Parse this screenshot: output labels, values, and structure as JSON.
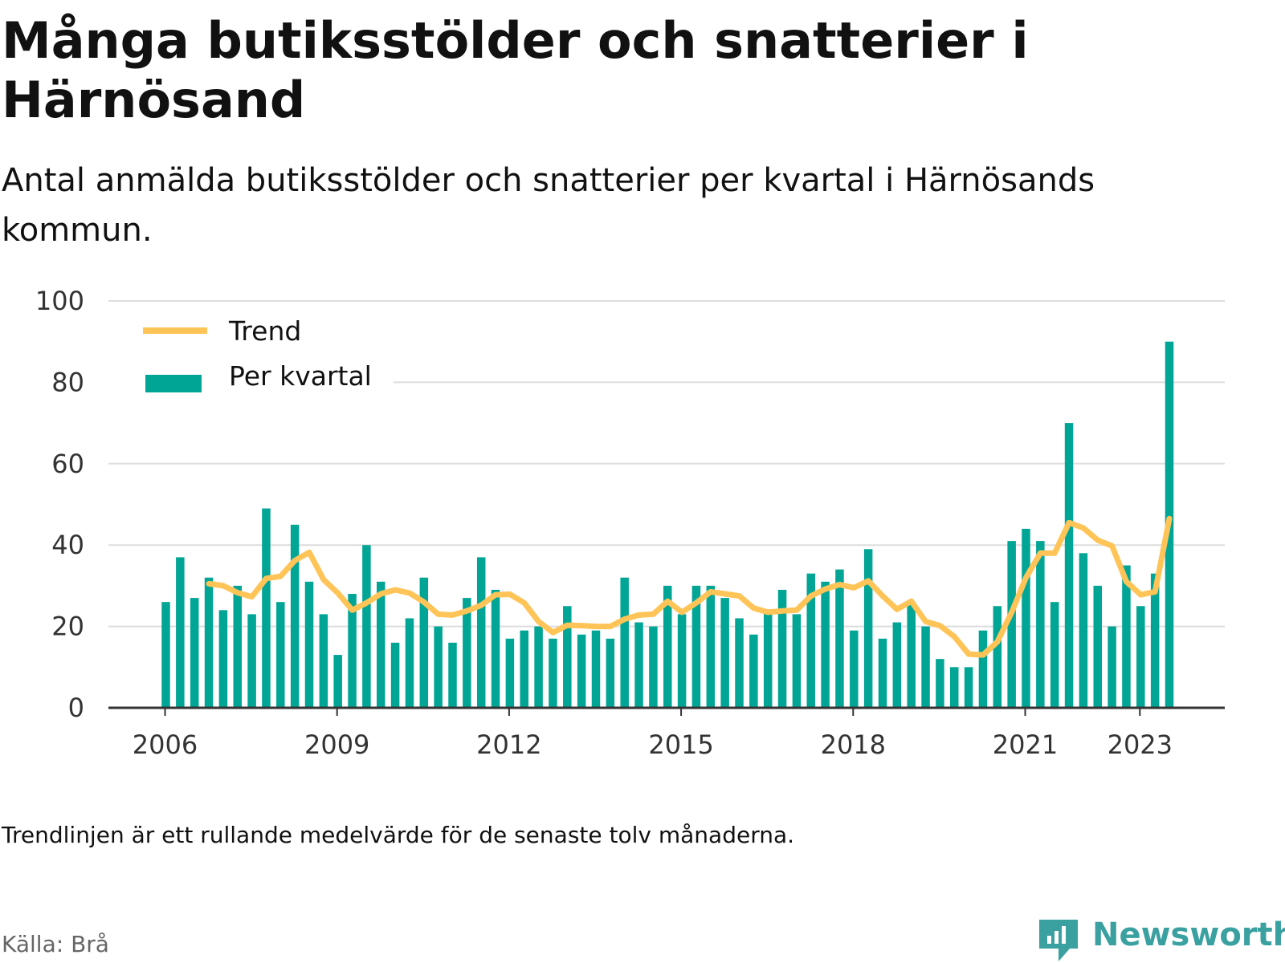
{
  "header": {
    "title": "Många butiksstölder och snatterier i Härnösand",
    "subtitle": "Antal anmälda butiksstölder och snatterier per kvartal i Härnösands kommun."
  },
  "footer": {
    "note": "Trendlinjen är ett rullande medelvärde för de senaste tolv månaderna.",
    "source": "Källa: Brå",
    "brand": "Newsworthy"
  },
  "colors": {
    "bar": "#00a595",
    "trend": "#ffc457",
    "grid": "#dddddd",
    "axis": "#333333"
  },
  "chart_data": {
    "type": "bar",
    "x_start": "2006 Q1",
    "x_ticks": [
      "2006",
      "2009",
      "2012",
      "2015",
      "2018",
      "2021",
      "2023"
    ],
    "y_ticks": [
      "0",
      "20",
      "40",
      "60",
      "80",
      "100"
    ],
    "ylim": [
      0,
      100
    ],
    "grid": true,
    "legend_position": "top-left",
    "series": [
      {
        "name": "Per kvartal",
        "type": "bar",
        "values": [
          26,
          37,
          27,
          32,
          24,
          30,
          23,
          49,
          26,
          45,
          31,
          23,
          13,
          28,
          40,
          31,
          16,
          22,
          32,
          20,
          16,
          27,
          37,
          29,
          17,
          19,
          20,
          17,
          25,
          18,
          19,
          17,
          32,
          21,
          20,
          30,
          23,
          30,
          30,
          27,
          22,
          18,
          24,
          29,
          23,
          33,
          31,
          34,
          19,
          39,
          17,
          21,
          26,
          20,
          12,
          10,
          10,
          19,
          25,
          41,
          44,
          41,
          26,
          70,
          38,
          30,
          20,
          35,
          25,
          33,
          90
        ]
      },
      {
        "name": "Trend",
        "type": "line",
        "start_index": 3,
        "values": [
          30.5,
          30,
          28.3,
          27.3,
          31.8,
          32.3,
          36.2,
          38.2,
          31.5,
          28.2,
          24,
          25.8,
          28,
          29,
          28.2,
          26,
          23,
          22.8,
          23.8,
          25.2,
          27.8,
          27.9,
          25.8,
          21.2,
          18.5,
          20.3,
          20.2,
          20,
          20,
          21.8,
          22.8,
          23,
          26.2,
          23.5,
          25.8,
          28.5,
          28,
          27.5,
          24.5,
          23.5,
          23.8,
          24,
          27.5,
          29.2,
          30.3,
          29.5,
          31.2,
          27.5,
          24.2,
          26.2,
          21.2,
          20.2,
          17.5,
          13.2,
          13,
          16.2,
          23.5,
          32,
          38,
          38,
          45.5,
          44.2,
          41.2,
          39.8,
          31,
          27.8,
          28.5,
          46.5
        ]
      }
    ]
  }
}
